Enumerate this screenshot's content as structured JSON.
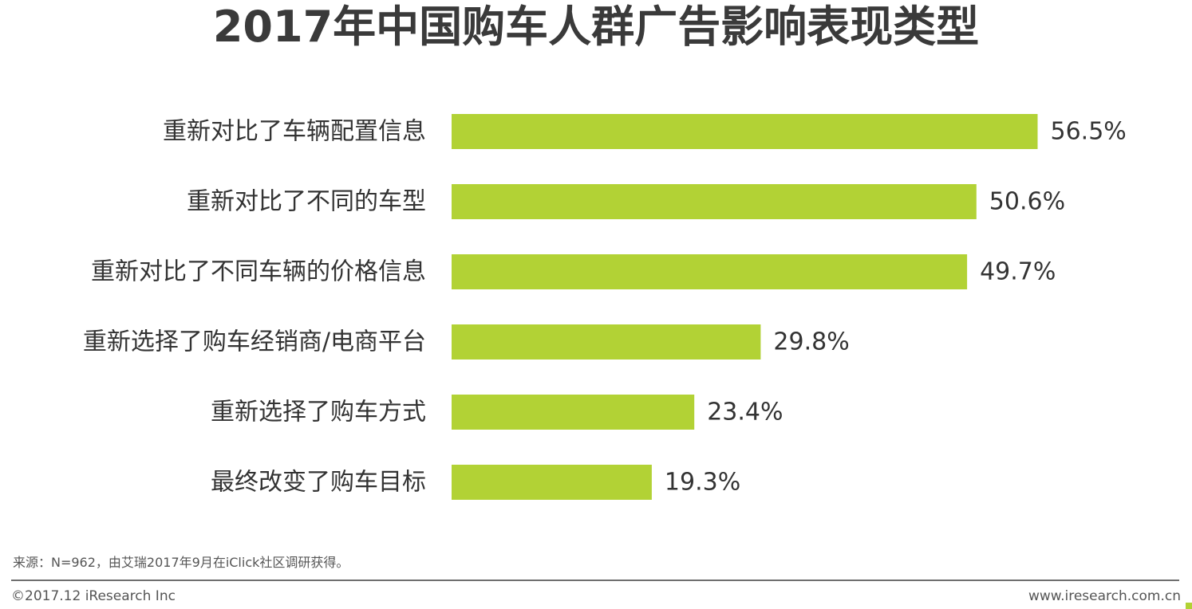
{
  "title": "2017年中国购车人群广告影响表现类型",
  "chart_data": {
    "type": "bar",
    "orientation": "horizontal",
    "title": "2017年中国购车人群广告影响表现类型",
    "categories": [
      "重新对比了车辆配置信息",
      "重新对比了不同的车型",
      "重新对比了不同车辆的价格信息",
      "重新选择了购车经销商/电商平台",
      "重新选择了购车方式",
      "最终改变了购车目标"
    ],
    "values": [
      56.5,
      50.6,
      49.7,
      29.8,
      23.4,
      19.3
    ],
    "value_labels": [
      "56.5%",
      "50.6%",
      "49.7%",
      "29.8%",
      "23.4%",
      "19.3%"
    ],
    "unit": "%",
    "xlim": [
      0,
      60
    ],
    "grid": false,
    "legend": "none",
    "bar_color": "#b2d235"
  },
  "footer": {
    "source": "来源：N=962，由艾瑞2017年9月在iClick社区调研获得。",
    "copyright": "©2017.12 iResearch Inc",
    "website": "www.iresearch.com.cn"
  },
  "colors": {
    "accent": "#b2d235",
    "text": "#333333",
    "divider": "#6f6f6f"
  }
}
